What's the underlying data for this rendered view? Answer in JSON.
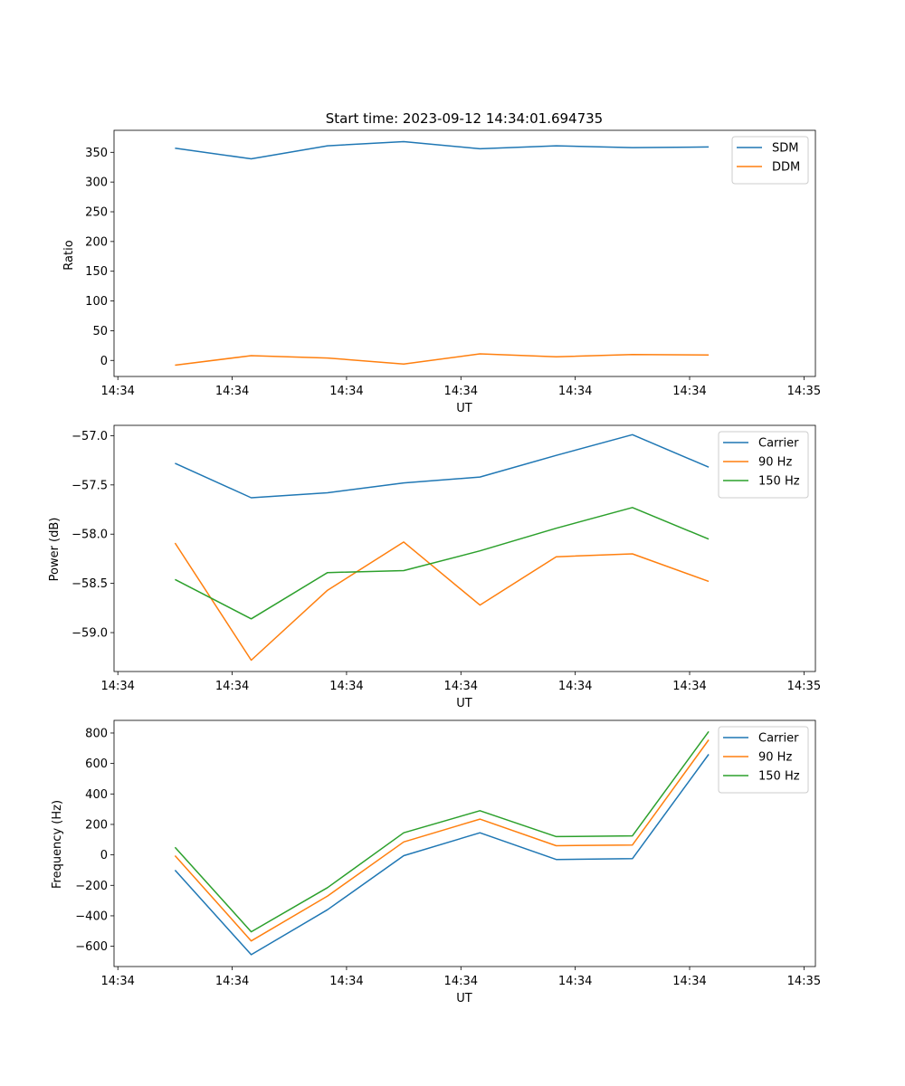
{
  "chart_data": [
    {
      "type": "line",
      "title": "Start time: 2023-09-12 14:34:01.694735",
      "xlabel": "UT",
      "ylabel": "Ratio",
      "x": [
        1,
        2,
        3,
        4,
        5,
        6,
        7,
        8
      ],
      "xlim": [
        0.2,
        9.4
      ],
      "xticks": [
        0.25,
        1.75,
        3.25,
        4.75,
        6.25,
        7.75,
        9.25
      ],
      "xtick_labels": [
        "14:34",
        "14:34",
        "14:34",
        "14:34",
        "14:34",
        "14:34",
        "14:35"
      ],
      "ylim": [
        -27,
        387
      ],
      "yticks": [
        0,
        50,
        100,
        150,
        200,
        250,
        300,
        350
      ],
      "ytick_labels": [
        "0",
        "50",
        "100",
        "150",
        "200",
        "250",
        "300",
        "350"
      ],
      "legend_position": "top-right",
      "series": [
        {
          "name": "SDM",
          "color": "#1f77b4",
          "values": [
            357,
            339,
            361,
            368,
            356,
            361,
            358,
            359
          ]
        },
        {
          "name": "DDM",
          "color": "#ff7f0e",
          "values": [
            -8,
            8,
            4,
            -6,
            11,
            6,
            10,
            9
          ]
        }
      ]
    },
    {
      "type": "line",
      "title": "",
      "xlabel": "UT",
      "ylabel": "Power (dB)",
      "x": [
        1,
        2,
        3,
        4,
        5,
        6,
        7,
        8
      ],
      "xlim": [
        0.2,
        9.4
      ],
      "xticks": [
        0.25,
        1.75,
        3.25,
        4.75,
        6.25,
        7.75,
        9.25
      ],
      "xtick_labels": [
        "14:34",
        "14:34",
        "14:34",
        "14:34",
        "14:34",
        "14:34",
        "14:35"
      ],
      "ylim": [
        -59.395,
        -56.895
      ],
      "yticks": [
        -59.0,
        -58.5,
        -58.0,
        -57.5,
        -57.0
      ],
      "ytick_labels": [
        "−59.0",
        "−58.5",
        "−58.0",
        "−57.5",
        "−57.0"
      ],
      "legend_position": "top-right",
      "series": [
        {
          "name": "Carrier",
          "color": "#1f77b4",
          "values": [
            -57.28,
            -57.63,
            -57.58,
            -57.48,
            -57.42,
            -57.2,
            -56.99,
            -57.32
          ]
        },
        {
          "name": "90 Hz",
          "color": "#ff7f0e",
          "values": [
            -58.09,
            -59.28,
            -58.57,
            -58.08,
            -58.72,
            -58.23,
            -58.2,
            -58.48
          ]
        },
        {
          "name": "150 Hz",
          "color": "#2ca02c",
          "values": [
            -58.46,
            -58.86,
            -58.39,
            -58.37,
            -58.17,
            -57.94,
            -57.73,
            -58.05
          ]
        }
      ]
    },
    {
      "type": "line",
      "title": "",
      "xlabel": "UT",
      "ylabel": "Frequency (Hz)",
      "x": [
        1,
        2,
        3,
        4,
        5,
        6,
        7,
        8
      ],
      "xlim": [
        0.2,
        9.4
      ],
      "xticks": [
        0.25,
        1.75,
        3.25,
        4.75,
        6.25,
        7.75,
        9.25
      ],
      "xtick_labels": [
        "14:34",
        "14:34",
        "14:34",
        "14:34",
        "14:34",
        "14:34",
        "14:35"
      ],
      "ylim": [
        -733,
        883
      ],
      "yticks": [
        -600,
        -400,
        -200,
        0,
        200,
        400,
        600,
        800
      ],
      "ytick_labels": [
        "−600",
        "−400",
        "−200",
        "0",
        "200",
        "400",
        "600",
        "800"
      ],
      "legend_position": "top-right",
      "series": [
        {
          "name": "Carrier",
          "color": "#1f77b4",
          "values": [
            -100,
            -655,
            -360,
            -5,
            145,
            -30,
            -25,
            660
          ]
        },
        {
          "name": "90 Hz",
          "color": "#ff7f0e",
          "values": [
            -5,
            -565,
            -270,
            85,
            235,
            60,
            65,
            755
          ]
        },
        {
          "name": "150 Hz",
          "color": "#2ca02c",
          "values": [
            50,
            -505,
            -215,
            145,
            290,
            120,
            125,
            810
          ]
        }
      ]
    }
  ]
}
